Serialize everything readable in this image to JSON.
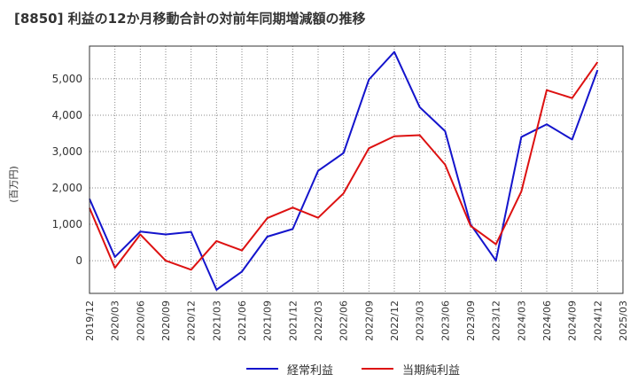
{
  "title": "[8850]  利益の12か月移動合計の対前年同期増減額の推移",
  "colors": {
    "series1": "#1414cc",
    "series2": "#dd1111",
    "grid": "#888888",
    "axis": "#333333"
  },
  "chart_data": {
    "type": "line",
    "title": "[8850]  利益の12か月移動合計の対前年同期増減額の推移",
    "ylabel": "(百万円)",
    "xlabel": "",
    "ylim": [
      -900,
      5900
    ],
    "yticks": [
      0,
      1000,
      2000,
      3000,
      4000,
      5000
    ],
    "ytick_labels": [
      "0",
      "1,000",
      "2,000",
      "3,000",
      "4,000",
      "5,000"
    ],
    "categories": [
      "2019/12",
      "2020/03",
      "2020/06",
      "2020/09",
      "2020/12",
      "2021/03",
      "2021/06",
      "2021/09",
      "2021/12",
      "2022/03",
      "2022/06",
      "2022/09",
      "2022/12",
      "2023/03",
      "2023/06",
      "2023/09",
      "2023/12",
      "2024/03",
      "2024/06",
      "2024/09",
      "2024/12",
      "2025/03"
    ],
    "series": [
      {
        "name": "経常利益",
        "color": "#1414cc",
        "values": [
          1700,
          100,
          800,
          720,
          790,
          -800,
          -300,
          660,
          870,
          2470,
          2960,
          4980,
          5740,
          4220,
          3560,
          1000,
          0,
          3400,
          3750,
          3330,
          5240,
          null
        ]
      },
      {
        "name": "当期純利益",
        "color": "#dd1111",
        "values": [
          1450,
          -200,
          720,
          0,
          -250,
          540,
          280,
          1170,
          1460,
          1180,
          1850,
          3090,
          3420,
          3450,
          2640,
          960,
          450,
          1900,
          4690,
          4470,
          5460,
          null
        ]
      }
    ],
    "legend": "bottom-center",
    "grid": true
  }
}
